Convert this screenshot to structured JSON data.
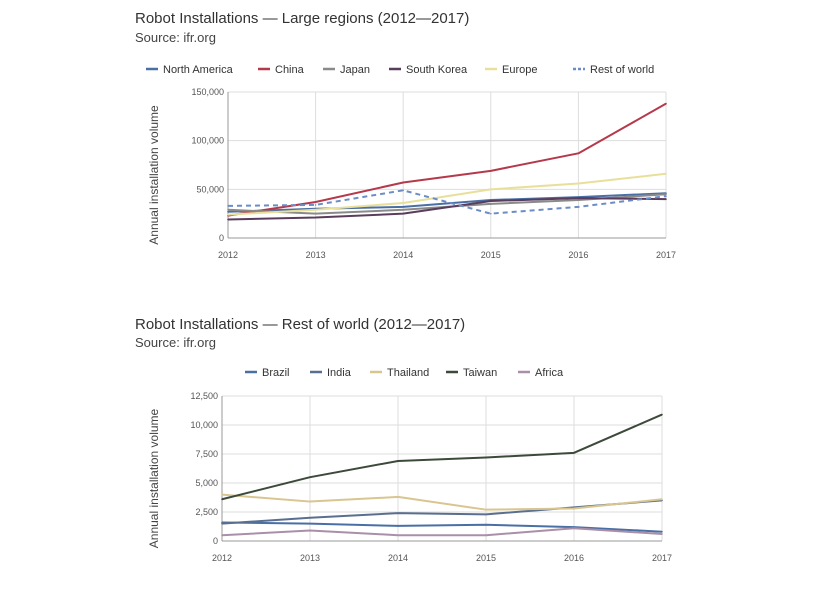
{
  "chart_data": [
    {
      "type": "line",
      "title": "Robot Installations — Large regions (2012—2017)",
      "subtitle": "Source: ifr.org",
      "xlabel": "",
      "ylabel": "Annual installation volume",
      "x": [
        "2012",
        "2013",
        "2014",
        "2015",
        "2016",
        "2017"
      ],
      "ylim": [
        0,
        150000
      ],
      "yticks": [
        "0",
        "50,000",
        "100,000",
        "150,000"
      ],
      "legend_position": "top",
      "grid": true,
      "series": [
        {
          "name": "North America",
          "color": "#4a6fa5",
          "dashed": false,
          "values": [
            27000,
            30000,
            32000,
            39000,
            42000,
            46000
          ]
        },
        {
          "name": "China",
          "color": "#b5394b",
          "dashed": false,
          "values": [
            23000,
            37000,
            57000,
            69000,
            87000,
            138000
          ]
        },
        {
          "name": "Japan",
          "color": "#8a8a8a",
          "dashed": false,
          "values": [
            29000,
            25000,
            29000,
            35000,
            39000,
            45000
          ]
        },
        {
          "name": "South Korea",
          "color": "#5a3d5c",
          "dashed": false,
          "values": [
            19000,
            21000,
            25000,
            38000,
            41000,
            40000
          ]
        },
        {
          "name": "Europe",
          "color": "#e8e09a",
          "dashed": false,
          "values": [
            24000,
            29000,
            36000,
            50000,
            56000,
            66000
          ]
        },
        {
          "name": "Rest of world",
          "color": "#6b8cc7",
          "dashed": true,
          "values": [
            33000,
            34000,
            49000,
            25000,
            32000,
            43000
          ]
        }
      ]
    },
    {
      "type": "line",
      "title": "Robot Installations — Rest of world (2012—2017)",
      "subtitle": "Source: ifr.org",
      "xlabel": "",
      "ylabel": "Annual installation volume",
      "x": [
        "2012",
        "2013",
        "2014",
        "2015",
        "2016",
        "2017"
      ],
      "ylim": [
        0,
        12500
      ],
      "yticks": [
        "0",
        "2,500",
        "5,000",
        "7,500",
        "10,000",
        "12,500"
      ],
      "legend_position": "top",
      "grid": true,
      "series": [
        {
          "name": "Brazil",
          "color": "#4a6fa5",
          "values": [
            1600,
            1500,
            1300,
            1400,
            1200,
            800
          ]
        },
        {
          "name": "India",
          "color": "#5a6f8f",
          "values": [
            1500,
            2000,
            2400,
            2300,
            2900,
            3500
          ]
        },
        {
          "name": "Thailand",
          "color": "#d9c58f",
          "values": [
            4000,
            3400,
            3800,
            2700,
            2800,
            3600
          ]
        },
        {
          "name": "Taiwan",
          "color": "#3c4a3a",
          "values": [
            3600,
            5500,
            6900,
            7200,
            7600,
            10900
          ]
        },
        {
          "name": "Africa",
          "color": "#a98fa8",
          "values": [
            500,
            900,
            500,
            500,
            1100,
            600
          ]
        }
      ]
    }
  ]
}
